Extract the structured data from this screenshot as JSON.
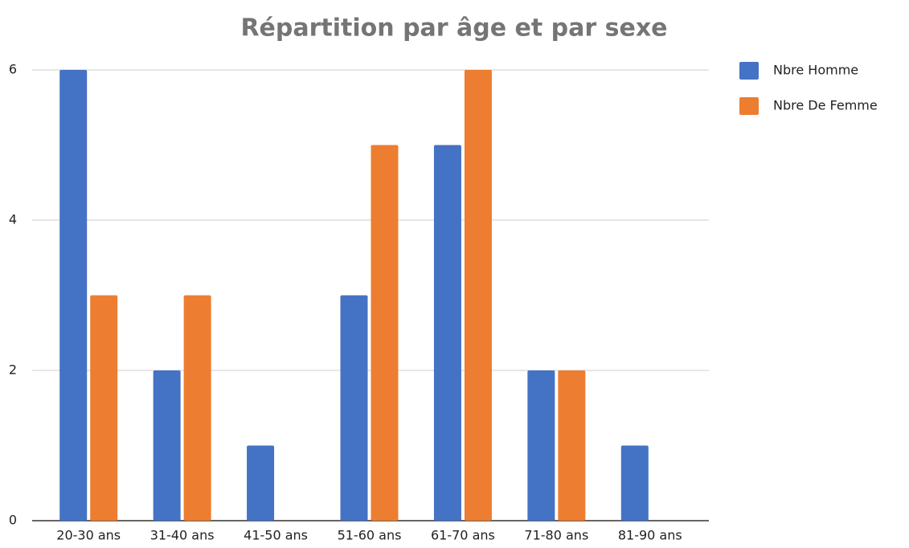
{
  "chart_data": {
    "type": "bar",
    "title": "Répartition par âge et par sexe",
    "categories": [
      "20-30 ans",
      "31-40 ans",
      "41-50 ans",
      "51-60 ans",
      "61-70 ans",
      "71-80 ans",
      "81-90 ans"
    ],
    "series": [
      {
        "name": "Nbre Homme",
        "color": "#4472c4",
        "values": [
          6,
          2,
          1,
          3,
          5,
          2,
          1
        ]
      },
      {
        "name": "Nbre De Femme",
        "color": "#ed7d31",
        "values": [
          3,
          3,
          0,
          5,
          6,
          2,
          0
        ]
      }
    ],
    "ylim": [
      0,
      6
    ],
    "yticks": [
      0,
      2,
      4,
      6
    ],
    "grid": true,
    "legend": "right"
  }
}
